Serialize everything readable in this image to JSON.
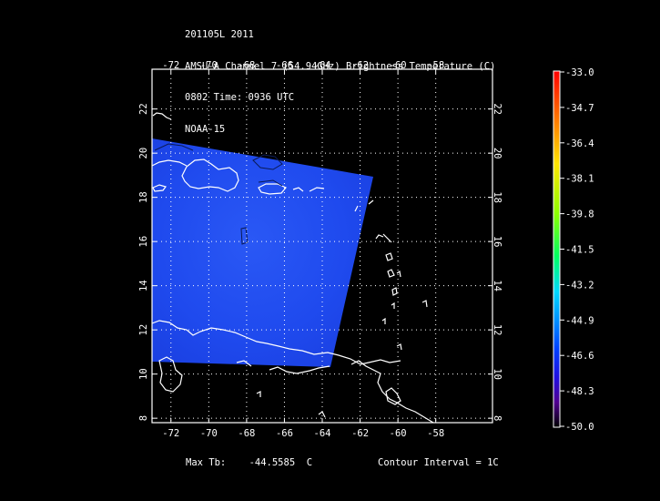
{
  "header": {
    "storm": "201105L 2011",
    "product": "AMSU-A Channel 7 (54.94GHz) Brightness Temperature (C)",
    "time": "0802 Time: 0936 UTC",
    "satellite": "NOAA-15"
  },
  "map": {
    "lon_ticks": [
      "-72",
      "-70",
      "-68",
      "-66",
      "-64",
      "-62",
      "-60",
      "-58"
    ],
    "lat_ticks": [
      "8",
      "10",
      "12",
      "14",
      "16",
      "18",
      "20",
      "22"
    ],
    "lon_range": [
      -73,
      -55
    ],
    "lat_range": [
      7.8,
      23.8
    ],
    "grid": true,
    "swath_color": "#1f48ee",
    "coast_color": "#ffffff",
    "contour_color": "#000000"
  },
  "colorbar": {
    "labels": [
      "-33.0",
      "-34.7",
      "-36.4",
      "-38.1",
      "-39.8",
      "-41.5",
      "-43.2",
      "-44.9",
      "-46.6",
      "-48.3",
      "-50.0"
    ],
    "range": [
      -50.0,
      -33.0
    ]
  },
  "footer": {
    "max_label": "Max Tb:",
    "max_value": "-44.5585",
    "max_unit": "C",
    "contour_interval": "Contour Interval = 1C"
  }
}
